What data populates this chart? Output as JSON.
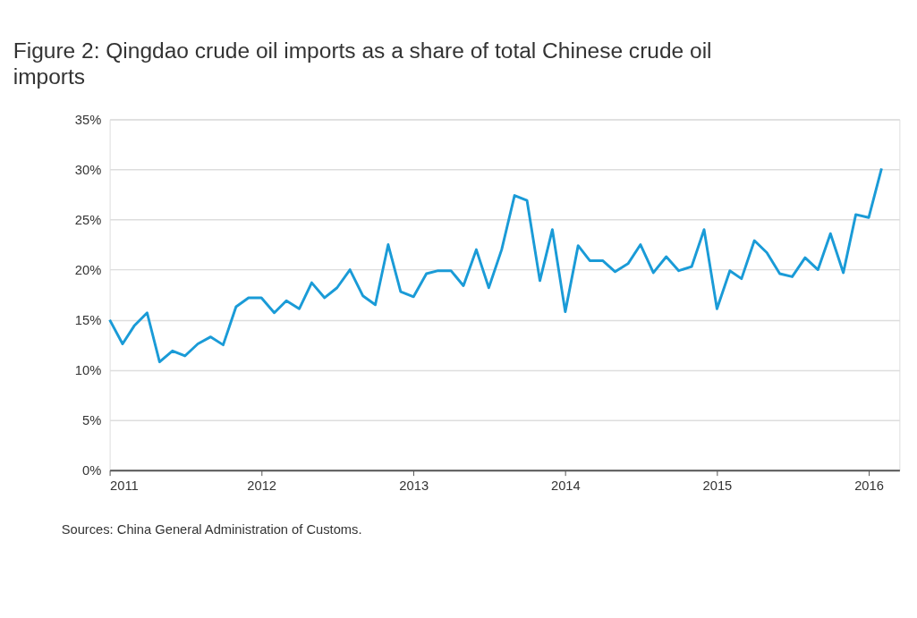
{
  "chart_data": {
    "type": "line",
    "title": "Figure 2: Qingdao crude oil imports as a share of total Chinese crude oil imports",
    "annotations": [
      "Sources: China General Administration of Customs."
    ],
    "x": [
      "2011-01",
      "2011-02",
      "2011-03",
      "2011-04",
      "2011-05",
      "2011-06",
      "2011-07",
      "2011-08",
      "2011-09",
      "2011-10",
      "2011-11",
      "2011-12",
      "2012-01",
      "2012-02",
      "2012-03",
      "2012-04",
      "2012-05",
      "2012-06",
      "2012-07",
      "2012-08",
      "2012-09",
      "2012-10",
      "2012-11",
      "2012-12",
      "2013-01",
      "2013-02",
      "2013-03",
      "2013-04",
      "2013-05",
      "2013-06",
      "2013-07",
      "2013-08",
      "2013-09",
      "2013-10",
      "2013-11",
      "2013-12",
      "2014-01",
      "2014-02",
      "2014-03",
      "2014-04",
      "2014-05",
      "2014-06",
      "2014-07",
      "2014-08",
      "2014-09",
      "2014-10",
      "2014-11",
      "2014-12",
      "2015-01",
      "2015-02",
      "2015-03",
      "2015-04",
      "2015-05",
      "2015-06",
      "2015-07",
      "2015-08",
      "2015-09",
      "2015-10",
      "2015-11",
      "2015-12",
      "2016-01",
      "2016-02"
    ],
    "series": [
      {
        "color": "#1a9bd7",
        "values": [
          15.0,
          12.6,
          14.4,
          15.7,
          10.8,
          11.9,
          11.4,
          12.6,
          13.3,
          12.5,
          16.3,
          17.2,
          17.2,
          15.7,
          16.9,
          16.1,
          18.7,
          17.2,
          18.2,
          20.0,
          17.4,
          16.5,
          22.5,
          17.8,
          17.3,
          19.6,
          19.9,
          19.9,
          18.4,
          22.0,
          18.2,
          22.0,
          27.4,
          26.9,
          18.9,
          24.0,
          15.8,
          22.4,
          20.9,
          20.9,
          19.8,
          20.6,
          22.5,
          19.7,
          21.3,
          19.9,
          20.3,
          24.0,
          16.1,
          19.9,
          19.1,
          22.9,
          21.7,
          19.6,
          19.3,
          21.2,
          20.0,
          23.6,
          19.7,
          25.5,
          25.2,
          30.1
        ]
      }
    ],
    "xlim": [
      "2011-01-01",
      "2016-03-15"
    ],
    "xticks": [
      {
        "value": "2011-01-01",
        "label": "2011"
      },
      {
        "value": "2012-01-01",
        "label": "2012"
      },
      {
        "value": "2013-01-01",
        "label": "2013"
      },
      {
        "value": "2014-01-01",
        "label": "2014"
      },
      {
        "value": "2015-01-01",
        "label": "2015"
      },
      {
        "value": "2016-01-01",
        "label": "2016"
      }
    ],
    "ylim": [
      0,
      35
    ],
    "yticks": [
      {
        "value": 0,
        "label": "0%"
      },
      {
        "value": 5,
        "label": "5%"
      },
      {
        "value": 10,
        "label": "10%"
      },
      {
        "value": 15,
        "label": "15%"
      },
      {
        "value": 20,
        "label": "20%"
      },
      {
        "value": 25,
        "label": "25%"
      },
      {
        "value": 30,
        "label": "30%"
      },
      {
        "value": 35,
        "label": "35%"
      }
    ],
    "grid": "y",
    "marker": "none",
    "line_style": "solid"
  }
}
